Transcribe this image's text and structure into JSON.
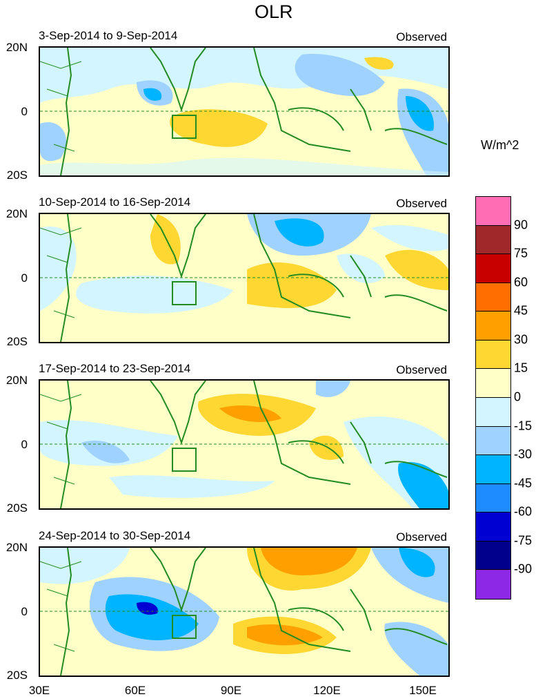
{
  "title": "OLR",
  "colorbar": {
    "unit": "W/m^2",
    "labels": [
      "90",
      "75",
      "60",
      "45",
      "30",
      "15",
      "0",
      "-15",
      "-30",
      "-45",
      "-60",
      "-75",
      "-90"
    ],
    "colors": [
      "#ff6eb4",
      "#a0282a",
      "#c80000",
      "#ff6e00",
      "#ffa000",
      "#ffd732",
      "#ffffc8",
      "#d2f5ff",
      "#a0d2ff",
      "#00b4ff",
      "#1e8cff",
      "#0000d2",
      "#00008c",
      "#8c28e6"
    ]
  },
  "axes": {
    "y_ticks": [
      "20N",
      "0",
      "20S"
    ],
    "x_ticks": [
      "30E",
      "60E",
      "90E",
      "120E",
      "150E"
    ]
  },
  "panels": [
    {
      "date_range": "3-Sep-2014 to 9-Sep-2014",
      "label": "Observed"
    },
    {
      "date_range": "10-Sep-2014 to 16-Sep-2014",
      "label": "Observed"
    },
    {
      "date_range": "17-Sep-2014 to 23-Sep-2014",
      "label": "Observed"
    },
    {
      "date_range": "24-Sep-2014 to 30-Sep-2014",
      "label": "Observed"
    }
  ]
}
